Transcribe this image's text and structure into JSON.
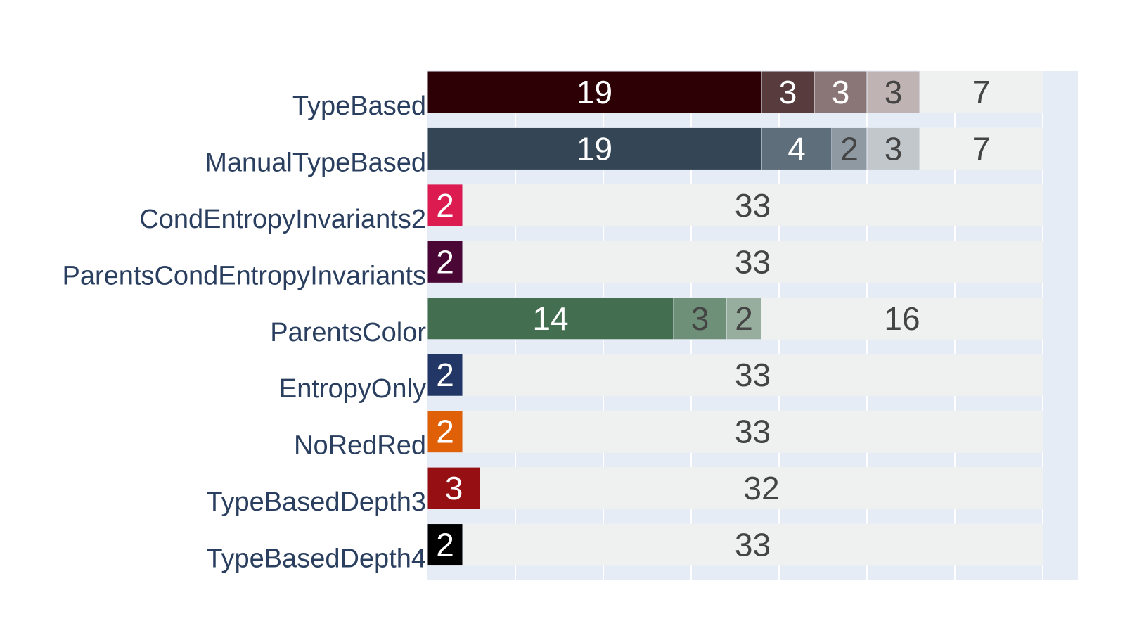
{
  "chart_data": {
    "type": "bar",
    "orientation": "horizontal",
    "barmode": "stack",
    "title": "",
    "xlabel": "",
    "ylabel": "",
    "xlim": [
      0,
      37
    ],
    "grid": true,
    "remainder_color": "#eff1f0",
    "plot_bg": "#e5ecf6",
    "rows": [
      {
        "category": "TypeBased",
        "segments": [
          {
            "value": 19,
            "color": "#2d0006",
            "label_color": "#ffffff"
          },
          {
            "value": 3,
            "color": "#573b3d",
            "label_color": "#ffffff"
          },
          {
            "value": 3,
            "color": "#8b7677",
            "label_color": "#ffffff"
          },
          {
            "value": 3,
            "color": "#c0b3b4",
            "label_color": "#444444"
          },
          {
            "value": 7,
            "color": "#eff1f0",
            "label_color": "#444444"
          }
        ]
      },
      {
        "category": "ManualTypeBased",
        "segments": [
          {
            "value": 19,
            "color": "#344656",
            "label_color": "#ffffff"
          },
          {
            "value": 4,
            "color": "#5f6e7b",
            "label_color": "#ffffff"
          },
          {
            "value": 2,
            "color": "#8f99a2",
            "label_color": "#444444"
          },
          {
            "value": 3,
            "color": "#c2c7cb",
            "label_color": "#444444"
          },
          {
            "value": 7,
            "color": "#eff1f0",
            "label_color": "#444444"
          }
        ]
      },
      {
        "category": "CondEntropyInvariants2",
        "segments": [
          {
            "value": 2,
            "color": "#dc1b50",
            "label_color": "#ffffff"
          },
          {
            "value": 33,
            "color": "#eff1f0",
            "label_color": "#444444"
          }
        ]
      },
      {
        "category": "ParentsCondEntropyInvariants",
        "segments": [
          {
            "value": 2,
            "color": "#4a0735",
            "label_color": "#ffffff"
          },
          {
            "value": 33,
            "color": "#eff1f0",
            "label_color": "#444444"
          }
        ]
      },
      {
        "category": "ParentsColor",
        "segments": [
          {
            "value": 14,
            "color": "#436e50",
            "label_color": "#ffffff"
          },
          {
            "value": 3,
            "color": "#6e8f78",
            "label_color": "#444444"
          },
          {
            "value": 2,
            "color": "#97ae9e",
            "label_color": "#444444"
          },
          {
            "value": 16,
            "color": "#eff1f0",
            "label_color": "#444444"
          }
        ]
      },
      {
        "category": "EntropyOnly",
        "segments": [
          {
            "value": 2,
            "color": "#233766",
            "label_color": "#ffffff"
          },
          {
            "value": 33,
            "color": "#eff1f0",
            "label_color": "#444444"
          }
        ]
      },
      {
        "category": "NoRedRed",
        "segments": [
          {
            "value": 2,
            "color": "#e06008",
            "label_color": "#ffffff"
          },
          {
            "value": 33,
            "color": "#eff1f0",
            "label_color": "#444444"
          }
        ]
      },
      {
        "category": "TypeBasedDepth3",
        "segments": [
          {
            "value": 3,
            "color": "#960f12",
            "label_color": "#ffffff"
          },
          {
            "value": 32,
            "color": "#eff1f0",
            "label_color": "#444444"
          }
        ]
      },
      {
        "category": "TypeBasedDepth4",
        "segments": [
          {
            "value": 2,
            "color": "#000000",
            "label_color": "#ffffff"
          },
          {
            "value": 33,
            "color": "#eff1f0",
            "label_color": "#444444"
          }
        ]
      }
    ]
  }
}
